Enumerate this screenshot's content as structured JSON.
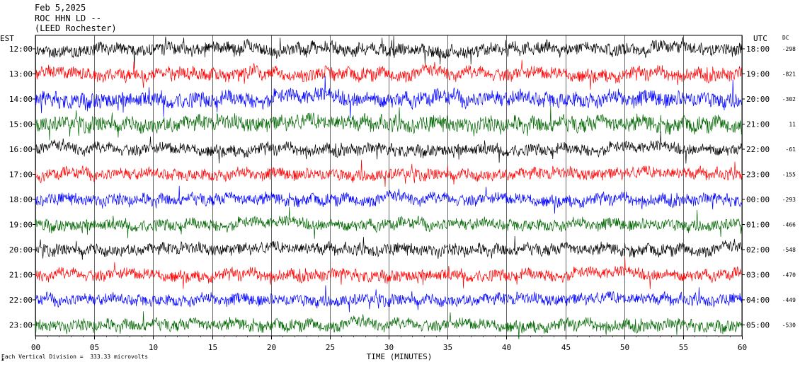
{
  "header": {
    "date": "Feb 5,2025",
    "station": "ROC HHN LD --",
    "location": "(LEED Rochester)"
  },
  "chart_data": {
    "type": "line",
    "title": "",
    "xlabel": "TIME (MINUTES)",
    "xlim": [
      0,
      60
    ],
    "x_ticks": [
      "00",
      "05",
      "10",
      "15",
      "20",
      "25",
      "30",
      "35",
      "40",
      "45",
      "50",
      "55",
      "60"
    ],
    "left_axis_label": "EST",
    "right_axis_label": "UTC",
    "dc_label": "DC",
    "colors": [
      "#000000",
      "#ff0000",
      "#0000ff",
      "#006600"
    ],
    "traces": [
      {
        "est": "12:00",
        "utc": "18:00",
        "dc": "-298",
        "color": "#000000",
        "amp": 1.0
      },
      {
        "est": "13:00",
        "utc": "19:00",
        "dc": "-821",
        "color": "#ff0000",
        "amp": 1.0
      },
      {
        "est": "14:00",
        "utc": "20:00",
        "dc": "-302",
        "color": "#0000ff",
        "amp": 1.2
      },
      {
        "est": "15:00",
        "utc": "21:00",
        "dc": "11",
        "color": "#006600",
        "amp": 1.2
      },
      {
        "est": "16:00",
        "utc": "22:00",
        "dc": "-61",
        "color": "#000000",
        "amp": 0.9
      },
      {
        "est": "17:00",
        "utc": "23:00",
        "dc": "-155",
        "color": "#ff0000",
        "amp": 0.9
      },
      {
        "est": "18:00",
        "utc": "00:00",
        "dc": "-293",
        "color": "#0000ff",
        "amp": 0.9
      },
      {
        "est": "19:00",
        "utc": "01:00",
        "dc": "-466",
        "color": "#006600",
        "amp": 0.9
      },
      {
        "est": "20:00",
        "utc": "02:00",
        "dc": "-548",
        "color": "#000000",
        "amp": 0.9
      },
      {
        "est": "21:00",
        "utc": "03:00",
        "dc": "-470",
        "color": "#ff0000",
        "amp": 0.9
      },
      {
        "est": "22:00",
        "utc": "04:00",
        "dc": "-449",
        "color": "#0000ff",
        "amp": 0.9
      },
      {
        "est": "23:00",
        "utc": "05:00",
        "dc": "-530",
        "color": "#006600",
        "amp": 0.9
      }
    ],
    "footer_note": "Each Vertical Division =  333.33 microvolts",
    "grid": true
  }
}
